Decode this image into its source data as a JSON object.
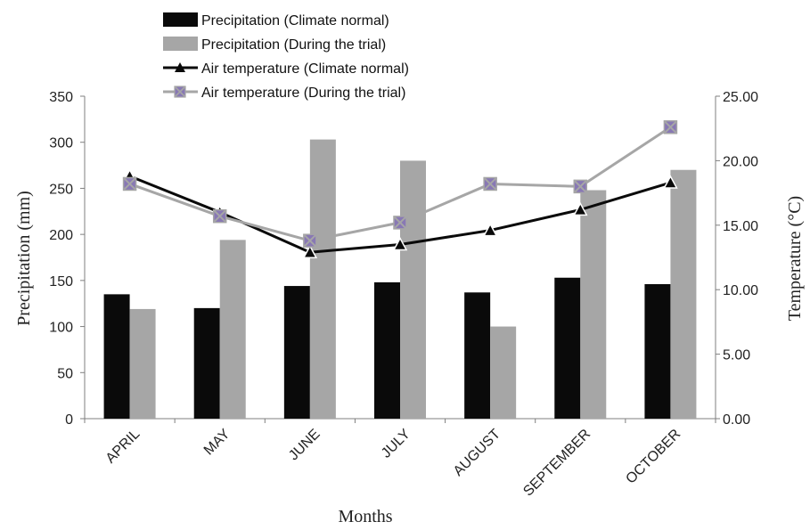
{
  "chart_data": {
    "type": "bar+line",
    "title": "",
    "categories": [
      "APRIL",
      "MAY",
      "JUNE",
      "JULY",
      "AUGUST",
      "SEPTEMBER",
      "OCTOBER"
    ],
    "xlabel": "Months",
    "ylabel": "Precipitation (mm)",
    "y2label": "Temperature   (°C)",
    "ylim": [
      0,
      350
    ],
    "y2lim": [
      0,
      25
    ],
    "yticks": [
      "0",
      "50",
      "100",
      "150",
      "200",
      "250",
      "300",
      "350"
    ],
    "y2ticks": [
      "0.00",
      "5.00",
      "10.00",
      "15.00",
      "20.00",
      "25.00"
    ],
    "legend_position": "top-left",
    "bar_series": [
      {
        "name": "Precipitation (Climate normal)",
        "color": "#0a0a0a",
        "values": [
          135,
          120,
          144,
          148,
          137,
          153,
          146
        ]
      },
      {
        "name": "Precipitation (During the trial)",
        "color": "#a6a6a6",
        "values": [
          119,
          194,
          303,
          280,
          100,
          248,
          270
        ]
      }
    ],
    "line_series": [
      {
        "name": "Air temperature (Climate normal)",
        "color": "#0a0a0a",
        "marker": "triangle",
        "values": [
          18.8,
          16.0,
          12.9,
          13.5,
          14.6,
          16.2,
          18.3
        ]
      },
      {
        "name": "Air temperature (During the trial)",
        "color": "#a6a6a6",
        "marker": "x-square",
        "marker_color": "#8878b4",
        "values": [
          18.2,
          15.7,
          13.8,
          15.2,
          18.2,
          18.0,
          22.6
        ]
      }
    ]
  }
}
